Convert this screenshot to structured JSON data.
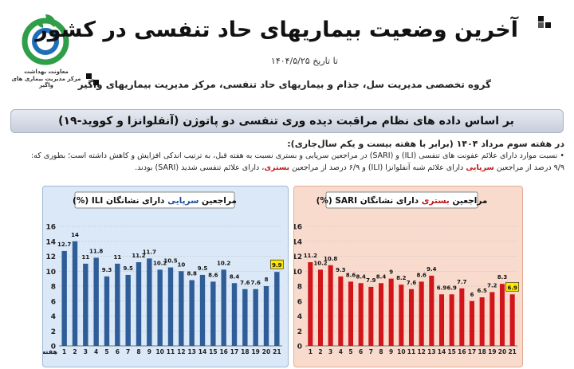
{
  "header": {
    "title": "آخرین وضعیت بیماریهای حاد تنفسی در کشور",
    "date_line": "تا تاریخ ۱۴۰۴/۵/۲۵",
    "org_line": "گروه تخصصی مدیریت سل، جذام و بیماریهای حاد تنفسی، مرکز مدیریت بیماریهای واگیر",
    "logo_line1": "معاونت بهداشت",
    "logo_line2": "مرکز مدیریت بیماری های واگیر"
  },
  "banner": {
    "text": "بر اساس داده های نظام مراقبت دیده وری تنفسی دو پاتوژن (آنفلوانزا و کووید-۱۹)"
  },
  "notes": {
    "line1": "در هفته سوم مرداد ۱۴۰۴ (برابر با هفته بیست و یکم سال‌جاری):",
    "line2": "• نسبت موارد دارای علائم عفونت های تنفسی (ILI) و (SARI) در مراجعین سرپایی و  بستری نسبت به هفته قبل، به ترتیب اندکی افزایش و کاهش داشته است؛ بطوری که:",
    "line3_a": "۹/۹ درصد از مراجعین ",
    "line3_b": "سرپایی",
    "line3_c": " دارای علائم شبه آنفلوانزا (ILI) و ۶/۹ درصد از مراجعین ",
    "line3_d": "بستری",
    "line3_e": "، دارای علائم تنفسی شدید (SARI) بودند."
  },
  "chart_data": [
    {
      "type": "bar",
      "title_prefix": "مراجعین ",
      "title_highlight": "سرپایی",
      "title_suffix": " دارای نشانگان ILI (%)",
      "xlabel": "هفته",
      "categories": [
        "1",
        "2",
        "3",
        "4",
        "5",
        "6",
        "7",
        "8",
        "9",
        "10",
        "11",
        "12",
        "13",
        "14",
        "15",
        "16",
        "17",
        "18",
        "19",
        "20",
        "21"
      ],
      "values": [
        12.7,
        14,
        11,
        11.8,
        9.3,
        11,
        9.5,
        11.2,
        11.7,
        10.2,
        10.5,
        10,
        8.8,
        9.5,
        8.6,
        10.2,
        8.4,
        7.6,
        7.6,
        8,
        9.9
      ],
      "ylim": [
        0,
        16
      ],
      "yticks": [
        0,
        2,
        4,
        6,
        8,
        10,
        12,
        14,
        16
      ],
      "grid": true,
      "highlight_last": true,
      "bar_color": "#2e5d98",
      "accent_color": "#1c4f96"
    },
    {
      "type": "bar",
      "title_prefix": "مراجعین ",
      "title_highlight": "بستری",
      "title_suffix": " دارای نشانگان SARI (%)",
      "xlabel": "",
      "categories": [
        "1",
        "2",
        "3",
        "4",
        "5",
        "6",
        "7",
        "8",
        "9",
        "10",
        "11",
        "12",
        "13",
        "14",
        "15",
        "16",
        "17",
        "18",
        "19",
        "20",
        "21"
      ],
      "values": [
        11.2,
        10.2,
        10.8,
        9.3,
        8.6,
        8.4,
        7.9,
        8.4,
        9,
        8.2,
        7.6,
        8.6,
        9.4,
        6.9,
        6.9,
        7.7,
        6,
        6.5,
        7.2,
        8.3,
        6.9
      ],
      "ylim": [
        0,
        16
      ],
      "yticks": [
        0,
        2,
        4,
        6,
        8,
        10,
        12,
        14,
        16
      ],
      "grid": true,
      "highlight_last": true,
      "bar_color": "#d0161b",
      "accent_color": "#c0161a"
    }
  ]
}
